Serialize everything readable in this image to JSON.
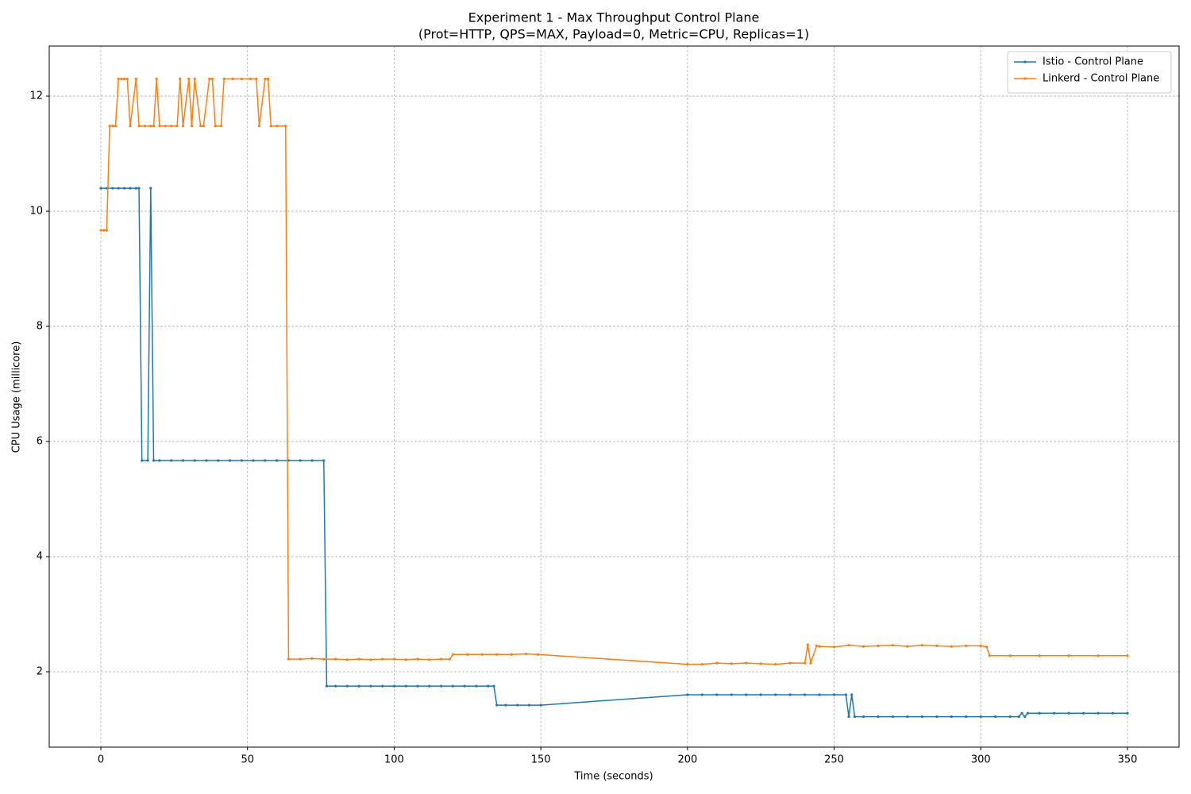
{
  "chart_data": {
    "type": "line",
    "title": "Experiment 1 - Max Throughput Control Plane",
    "subtitle": "(Prot=HTTP, QPS=MAX, Payload=0, Metric=CPU, Replicas=1)",
    "x_label": "Time (seconds)",
    "y_label": "CPU Usage (millicore)",
    "xlim": [
      -17.6,
      367.6
    ],
    "ylim": [
      0.69,
      12.87
    ],
    "xticks": [
      0,
      50,
      100,
      150,
      200,
      250,
      300,
      350
    ],
    "yticks": [
      2,
      4,
      6,
      8,
      10,
      12
    ],
    "grid": true,
    "legend": "upper right",
    "series": [
      {
        "name": "Istio - Control Plane",
        "color": "#1f77b4",
        "x": [
          0,
          2,
          4,
          6,
          8,
          10,
          12,
          13,
          14,
          16,
          17,
          18,
          20,
          24,
          28,
          32,
          36,
          40,
          44,
          48,
          52,
          56,
          60,
          64,
          68,
          72,
          76,
          77,
          80,
          84,
          88,
          92,
          96,
          100,
          104,
          108,
          112,
          116,
          120,
          124,
          128,
          132,
          134,
          135,
          138,
          142,
          146,
          150,
          200,
          205,
          210,
          215,
          220,
          225,
          230,
          235,
          240,
          245,
          250,
          254,
          255,
          256,
          257,
          260,
          265,
          270,
          275,
          280,
          285,
          290,
          295,
          300,
          305,
          310,
          313,
          314,
          315,
          316,
          320,
          325,
          330,
          335,
          340,
          345,
          350
        ],
        "values": [
          10.4,
          10.4,
          10.4,
          10.4,
          10.4,
          10.4,
          10.4,
          10.4,
          5.67,
          5.67,
          10.4,
          5.67,
          5.67,
          5.67,
          5.67,
          5.67,
          5.67,
          5.67,
          5.67,
          5.67,
          5.67,
          5.67,
          5.67,
          5.67,
          5.67,
          5.67,
          5.67,
          1.75,
          1.75,
          1.75,
          1.75,
          1.75,
          1.75,
          1.75,
          1.75,
          1.75,
          1.75,
          1.75,
          1.75,
          1.75,
          1.75,
          1.75,
          1.75,
          1.42,
          1.42,
          1.42,
          1.42,
          1.42,
          1.6,
          1.6,
          1.6,
          1.6,
          1.6,
          1.6,
          1.6,
          1.6,
          1.6,
          1.6,
          1.6,
          1.6,
          1.22,
          1.6,
          1.22,
          1.22,
          1.22,
          1.22,
          1.22,
          1.22,
          1.22,
          1.22,
          1.22,
          1.22,
          1.22,
          1.22,
          1.22,
          1.28,
          1.22,
          1.28,
          1.28,
          1.28,
          1.28,
          1.28,
          1.28,
          1.28,
          1.28
        ]
      },
      {
        "name": "Linkerd - Control Plane",
        "color": "#ff7f0e",
        "x": [
          0,
          1,
          2,
          3,
          4,
          5,
          6,
          7,
          8,
          9,
          10,
          12,
          13,
          15,
          17,
          18,
          19,
          20,
          22,
          24,
          26,
          27,
          28,
          30,
          31,
          32,
          34,
          35,
          37,
          38,
          39,
          41,
          42,
          45,
          48,
          51,
          53,
          54,
          56,
          57,
          58,
          60,
          63,
          64,
          68,
          72,
          76,
          80,
          84,
          88,
          92,
          96,
          100,
          104,
          108,
          112,
          116,
          119,
          120,
          125,
          130,
          135,
          140,
          145,
          149,
          200,
          205,
          210,
          215,
          220,
          225,
          230,
          235,
          240,
          241,
          242,
          244,
          245,
          250,
          255,
          260,
          265,
          270,
          275,
          280,
          285,
          290,
          295,
          300,
          302,
          303,
          310,
          320,
          330,
          340,
          350
        ],
        "values": [
          9.67,
          9.67,
          9.67,
          11.48,
          11.48,
          11.48,
          12.3,
          12.3,
          12.3,
          12.3,
          11.48,
          12.3,
          11.48,
          11.48,
          11.48,
          11.48,
          12.3,
          11.48,
          11.48,
          11.48,
          11.48,
          12.3,
          11.48,
          12.3,
          11.48,
          12.3,
          11.48,
          11.48,
          12.3,
          12.3,
          11.48,
          11.48,
          12.3,
          12.3,
          12.3,
          12.3,
          12.3,
          11.48,
          12.3,
          12.3,
          11.48,
          11.48,
          11.48,
          2.22,
          2.22,
          2.23,
          2.22,
          2.22,
          2.21,
          2.22,
          2.21,
          2.22,
          2.22,
          2.21,
          2.22,
          2.21,
          2.22,
          2.22,
          2.3,
          2.3,
          2.3,
          2.3,
          2.3,
          2.31,
          2.3,
          2.13,
          2.13,
          2.15,
          2.14,
          2.15,
          2.14,
          2.13,
          2.15,
          2.15,
          2.47,
          2.15,
          2.45,
          2.44,
          2.43,
          2.46,
          2.44,
          2.45,
          2.46,
          2.44,
          2.46,
          2.45,
          2.44,
          2.45,
          2.45,
          2.43,
          2.28,
          2.28,
          2.28,
          2.28,
          2.28,
          2.28
        ]
      }
    ]
  }
}
